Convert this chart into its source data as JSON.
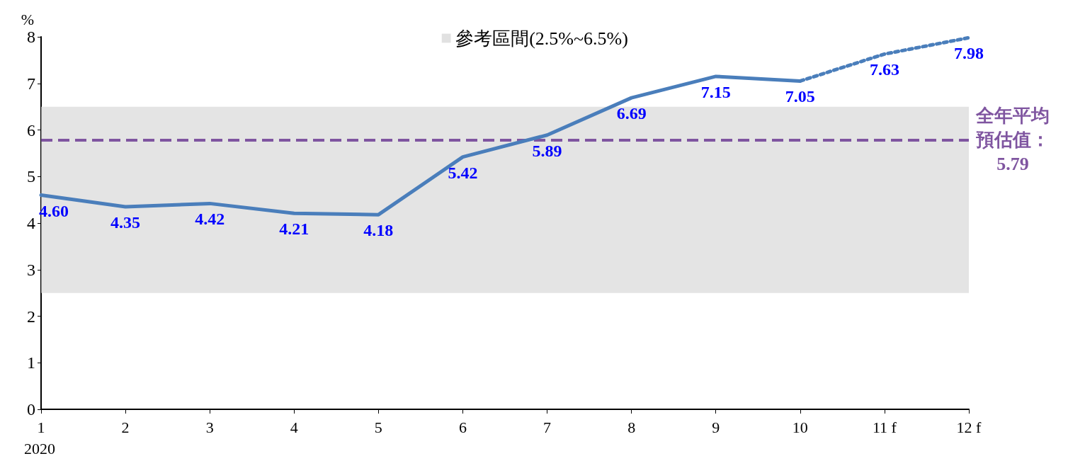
{
  "chart_data": {
    "type": "line",
    "ylabel": "%",
    "categories": [
      "1",
      "2",
      "3",
      "4",
      "5",
      "6",
      "7",
      "8",
      "9",
      "10",
      "11 f",
      "12 f"
    ],
    "series": [
      {
        "color": "#4a7ebb",
        "line_style": "solid",
        "values": [
          4.6,
          4.35,
          4.42,
          4.21,
          4.18,
          5.42,
          5.89,
          6.69,
          7.15,
          7.05,
          null,
          null
        ],
        "value_labels": [
          "4.60",
          "4.35",
          "4.42",
          "4.21",
          "4.18",
          "5.42",
          "5.89",
          "6.69",
          "7.15",
          "7.05",
          null,
          null
        ]
      },
      {
        "color": "#4a7ebb",
        "line_style": "dotted",
        "values": [
          null,
          null,
          null,
          null,
          null,
          null,
          null,
          null,
          null,
          7.05,
          7.63,
          7.98
        ],
        "value_labels": [
          null,
          null,
          null,
          null,
          null,
          null,
          null,
          null,
          null,
          null,
          "7.63",
          "7.98"
        ]
      }
    ],
    "ylim": [
      0,
      8
    ],
    "yticks": [
      0,
      1,
      2,
      3,
      4,
      5,
      6,
      7,
      8
    ],
    "grid": false,
    "marker": "none",
    "legend": "top",
    "bands": [
      {
        "axis": "y",
        "from": 2.5,
        "to": 6.5,
        "label": "參考區間(2.5%~6.5%)",
        "color": "#d9d9d9"
      }
    ],
    "ref_lines": [
      {
        "axis": "y",
        "value": 5.79,
        "label": "全年平均預估值：5.79",
        "color": "#7f55a0",
        "line_style": "dashed"
      }
    ],
    "annotations": [
      "2020"
    ]
  }
}
